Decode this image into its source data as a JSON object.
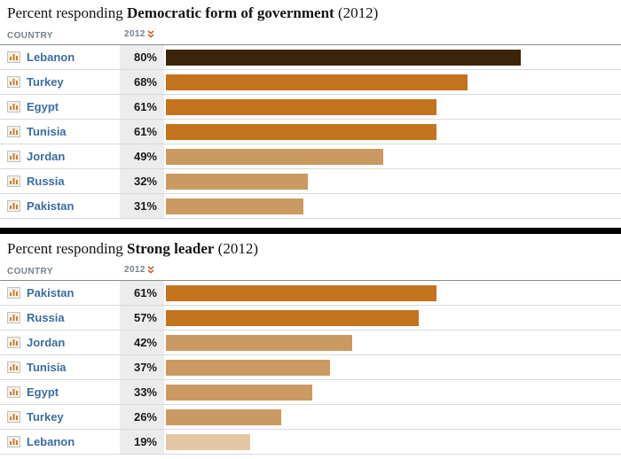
{
  "colors": {
    "darkest": "#3b2409",
    "dark": "#c3731e",
    "medium": "#cb9a62",
    "light": "#e3c7a5",
    "country_text": "#3d6d9e",
    "header_text": "#75818d",
    "value_cell_bg": "#ececec",
    "sort_icon": "#cc5a1e",
    "divider": "#000000"
  },
  "chart_data": [
    {
      "type": "bar",
      "orientation": "horizontal",
      "title": "Percent responding Democratic form of government (2012)",
      "title_prefix": "Percent responding ",
      "title_bold": "Democratic form of government",
      "title_suffix": " (2012)",
      "columns": {
        "country": "COUNTRY",
        "year": "2012"
      },
      "unit": "%",
      "xlim": [
        0,
        100
      ],
      "rows": [
        {
          "country": "Lebanon",
          "value": 80,
          "tone": "darkest"
        },
        {
          "country": "Turkey",
          "value": 68,
          "tone": "dark"
        },
        {
          "country": "Egypt",
          "value": 61,
          "tone": "dark"
        },
        {
          "country": "Tunisia",
          "value": 61,
          "tone": "dark"
        },
        {
          "country": "Jordan",
          "value": 49,
          "tone": "medium"
        },
        {
          "country": "Russia",
          "value": 32,
          "tone": "medium"
        },
        {
          "country": "Pakistan",
          "value": 31,
          "tone": "medium"
        }
      ]
    },
    {
      "type": "bar",
      "orientation": "horizontal",
      "title": "Percent responding Strong leader (2012)",
      "title_prefix": "Percent responding ",
      "title_bold": "Strong leader",
      "title_suffix": " (2012)",
      "columns": {
        "country": "COUNTRY",
        "year": "2012"
      },
      "unit": "%",
      "xlim": [
        0,
        100
      ],
      "rows": [
        {
          "country": "Pakistan",
          "value": 61,
          "tone": "dark"
        },
        {
          "country": "Russia",
          "value": 57,
          "tone": "dark"
        },
        {
          "country": "Jordan",
          "value": 42,
          "tone": "medium"
        },
        {
          "country": "Tunisia",
          "value": 37,
          "tone": "medium"
        },
        {
          "country": "Egypt",
          "value": 33,
          "tone": "medium"
        },
        {
          "country": "Turkey",
          "value": 26,
          "tone": "medium"
        },
        {
          "country": "Lebanon",
          "value": 19,
          "tone": "light"
        }
      ]
    }
  ]
}
